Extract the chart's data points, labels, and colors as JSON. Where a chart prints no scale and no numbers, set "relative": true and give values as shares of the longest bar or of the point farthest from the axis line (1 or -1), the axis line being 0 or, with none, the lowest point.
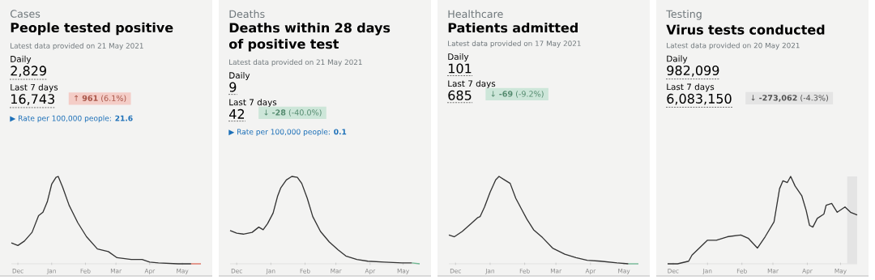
{
  "chart_data": [
    {
      "type": "line",
      "subtitle": "Cases",
      "title": "People tested positive",
      "relative": true,
      "annotations": [
        "Latest data provided on 21 May 2021",
        "Daily",
        "2,829",
        "Last 7 days",
        "16,743",
        "↑ **961** (6.1%)",
        "▶ Rate per 100,000 people: **21.6**"
      ],
      "xlim": [
        "2020-11-25",
        "2021-05-18"
      ],
      "xticks": [
        {
          "value": "2020-12-01",
          "label": "Dec"
        },
        {
          "value": "2021-01-01",
          "label": "Jan"
        },
        {
          "value": "2021-02-01",
          "label": "Feb"
        },
        {
          "value": "2021-03-01",
          "label": "Mar"
        },
        {
          "value": "2021-04-01",
          "label": "Apr"
        },
        {
          "value": "2021-05-01",
          "label": "May"
        }
      ],
      "x": [
        "2020-11-25",
        "2020-12-01",
        "2020-12-07",
        "2020-12-14",
        "2020-12-20",
        "2020-12-24",
        "2020-12-28",
        "2021-01-01",
        "2021-01-05",
        "2021-01-07",
        "2021-01-11",
        "2021-01-17",
        "2021-01-25",
        "2021-02-02",
        "2021-02-12",
        "2021-02-22",
        "2021-03-02",
        "2021-03-15",
        "2021-03-25",
        "2021-04-01",
        "2021-04-09",
        "2021-04-27",
        "2021-05-09"
      ],
      "series": [
        {
          "color": "#333333",
          "values": [
            0.24,
            0.21,
            0.26,
            0.36,
            0.55,
            0.59,
            0.71,
            0.91,
            0.99,
            1,
            0.88,
            0.67,
            0.47,
            0.31,
            0.17,
            0.14,
            0.07,
            0.05,
            0.05,
            0.02,
            0.01,
            0,
            0
          ]
        },
        {
          "color": "#e0705f",
          "x": [
            "2021-05-09",
            "2021-05-18"
          ],
          "values": [
            0,
            0
          ]
        }
      ]
    },
    {
      "type": "line",
      "subtitle": "Deaths",
      "title": "Deaths within 28 days of positive test",
      "relative": true,
      "annotations": [
        "Latest data provided on 21 May 2021",
        "Daily",
        "9",
        "Last 7 days",
        "42",
        "↓ **-28** (-40.0%)",
        "▶ Rate per 100,000 people: **0.1**"
      ],
      "xlim": [
        "2020-11-25",
        "2021-05-16"
      ],
      "xticks": [
        {
          "value": "2020-12-01",
          "label": "Dec"
        },
        {
          "value": "2021-01-01",
          "label": "Jan"
        },
        {
          "value": "2021-02-01",
          "label": "Feb"
        },
        {
          "value": "2021-03-01",
          "label": "Mar"
        },
        {
          "value": "2021-04-01",
          "label": "Apr"
        },
        {
          "value": "2021-05-01",
          "label": "May"
        }
      ],
      "x": [
        "2020-11-25",
        "2020-12-01",
        "2020-12-07",
        "2020-12-15",
        "2020-12-21",
        "2020-12-25",
        "2020-12-29",
        "2021-01-03",
        "2021-01-07",
        "2021-01-10",
        "2021-01-15",
        "2021-01-20",
        "2021-01-25",
        "2021-01-29",
        "2021-02-03",
        "2021-02-08",
        "2021-02-15",
        "2021-02-23",
        "2021-03-03",
        "2021-03-10",
        "2021-03-20",
        "2021-03-30",
        "2021-04-14",
        "2021-04-30",
        "2021-05-09"
      ],
      "series": [
        {
          "color": "#333333",
          "values": [
            0.38,
            0.35,
            0.34,
            0.36,
            0.42,
            0.39,
            0.46,
            0.58,
            0.77,
            0.87,
            0.96,
            1,
            0.99,
            0.92,
            0.75,
            0.54,
            0.37,
            0.25,
            0.16,
            0.09,
            0.05,
            0.03,
            0.02,
            0.01,
            0.01
          ]
        },
        {
          "color": "#6fb893",
          "x": [
            "2021-05-09",
            "2021-05-16"
          ],
          "values": [
            0.01,
            0
          ]
        }
      ]
    },
    {
      "type": "line",
      "subtitle": "Healthcare",
      "title": "Patients admitted",
      "relative": true,
      "annotations": [
        "Latest data provided on 17 May 2021",
        "Daily",
        "101",
        "Last 7 days",
        "685",
        "↓ **-69** (-9.2%)"
      ],
      "xlim": [
        "2020-11-25",
        "2021-05-14"
      ],
      "xticks": [
        {
          "value": "2020-12-01",
          "label": "Dec"
        },
        {
          "value": "2021-01-01",
          "label": "Jan"
        },
        {
          "value": "2021-02-01",
          "label": "Feb"
        },
        {
          "value": "2021-03-01",
          "label": "Mar"
        },
        {
          "value": "2021-04-01",
          "label": "Apr"
        },
        {
          "value": "2021-05-01",
          "label": "May"
        }
      ],
      "x": [
        "2020-11-25",
        "2020-11-30",
        "2020-12-07",
        "2020-12-15",
        "2020-12-21",
        "2020-12-23",
        "2020-12-27",
        "2021-01-01",
        "2021-01-06",
        "2021-01-09",
        "2021-01-14",
        "2021-01-19",
        "2021-01-24",
        "2021-01-29",
        "2021-02-03",
        "2021-02-09",
        "2021-02-17",
        "2021-02-26",
        "2021-03-09",
        "2021-03-19",
        "2021-03-29",
        "2021-04-10",
        "2021-04-25",
        "2021-05-05"
      ],
      "series": [
        {
          "color": "#333333",
          "values": [
            0.33,
            0.31,
            0.37,
            0.46,
            0.53,
            0.54,
            0.65,
            0.82,
            0.96,
            1,
            0.96,
            0.92,
            0.75,
            0.63,
            0.51,
            0.39,
            0.3,
            0.18,
            0.11,
            0.07,
            0.04,
            0.03,
            0.01,
            0
          ]
        },
        {
          "color": "#6fb893",
          "x": [
            "2021-05-05",
            "2021-05-14"
          ],
          "values": [
            0,
            0
          ]
        }
      ]
    },
    {
      "type": "line",
      "subtitle": "Testing",
      "title": "Virus tests conducted",
      "relative": true,
      "annotations": [
        "Latest data provided on 20 May 2021",
        "Daily",
        "982,099",
        "Last 7 days",
        "6,083,150",
        "↓ **-273,062** (-4.3%)"
      ],
      "xlim": [
        "2020-11-26",
        "2021-05-16"
      ],
      "xticks": [
        {
          "value": "2020-12-01",
          "label": "Dec"
        },
        {
          "value": "2021-01-01",
          "label": "Jan"
        },
        {
          "value": "2021-02-01",
          "label": "Feb"
        },
        {
          "value": "2021-03-01",
          "label": "Mar"
        },
        {
          "value": "2021-04-01",
          "label": "Apr"
        },
        {
          "value": "2021-05-01",
          "label": "May"
        }
      ],
      "x": [
        "2020-11-26",
        "2020-12-05",
        "2020-12-15",
        "2020-12-18",
        "2021-01-01",
        "2021-01-09",
        "2021-01-19",
        "2021-01-31",
        "2021-02-07",
        "2021-02-15",
        "2021-02-22",
        "2021-03-02",
        "2021-03-07",
        "2021-03-10",
        "2021-03-14",
        "2021-03-17",
        "2021-03-21",
        "2021-03-27",
        "2021-03-31",
        "2021-04-03",
        "2021-04-06",
        "2021-04-10",
        "2021-04-16",
        "2021-04-18",
        "2021-04-23",
        "2021-04-28",
        "2021-05-05",
        "2021-05-10",
        "2021-05-16"
      ],
      "series": [
        {
          "color": "#333333",
          "values": [
            0,
            0,
            0.03,
            0.1,
            0.27,
            0.27,
            0.31,
            0.33,
            0.29,
            0.18,
            0.31,
            0.48,
            0.86,
            0.95,
            0.93,
            1,
            0.89,
            0.78,
            0.61,
            0.44,
            0.42,
            0.52,
            0.57,
            0.67,
            0.69,
            0.59,
            0.65,
            0.59,
            0.56
          ]
        }
      ],
      "bands": [
        {
          "axis": "x",
          "from": "2021-05-07",
          "to": "2021-05-16",
          "color": "#e4e4e4"
        }
      ]
    }
  ]
}
